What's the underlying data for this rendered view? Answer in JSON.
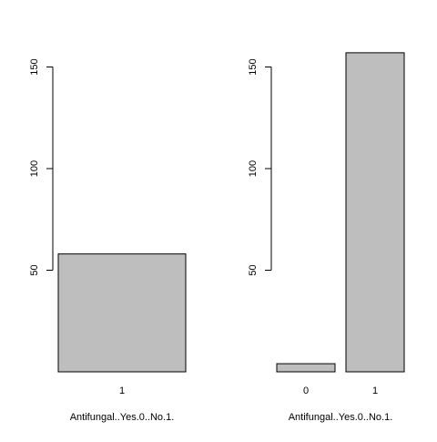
{
  "colors": {
    "bar_fill": "#bebebe",
    "bar_stroke": "#000000",
    "axis": "#000000",
    "background": "#ffffff"
  },
  "chart_data": [
    {
      "type": "bar",
      "categories": [
        "1"
      ],
      "values": [
        58
      ],
      "title": "",
      "xlabel": "Antifungal..Yes.0..No.1.",
      "ylabel": "",
      "yticks": [
        "50",
        "100",
        "150"
      ],
      "ylim": [
        0,
        157
      ]
    },
    {
      "type": "bar",
      "categories": [
        "0",
        "1"
      ],
      "values": [
        4,
        157
      ],
      "title": "",
      "xlabel": "Antifungal..Yes.0..No.1.",
      "ylabel": "",
      "yticks": [
        "50",
        "100",
        "150"
      ],
      "ylim": [
        0,
        157
      ]
    }
  ]
}
